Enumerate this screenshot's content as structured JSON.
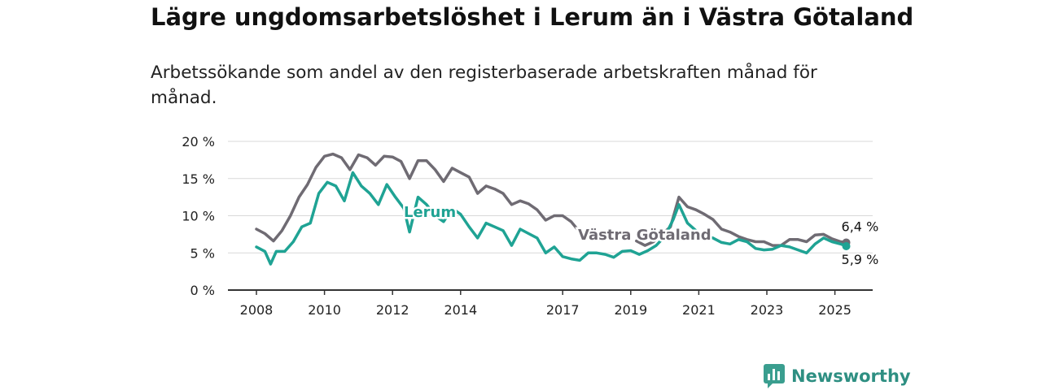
{
  "title": "Lägre ungdomsarbetslöshet i Lerum än i Västra Götaland",
  "subtitle": "Arbetssökande som andel av den registerbaserade arbetskraften månad för månad.",
  "brand": {
    "name": "Newsworthy",
    "icon": "bar-chart-speech-bubble-icon",
    "color": "#3a9e8f"
  },
  "chart_data": {
    "type": "line",
    "xlabel": "",
    "ylabel": "",
    "ylim": [
      0,
      20
    ],
    "xlim": [
      "2008-01",
      "2025-12"
    ],
    "y_ticks": [
      "0 %",
      "5 %",
      "10 %",
      "15 %",
      "20 %"
    ],
    "x_ticks": [
      "2008",
      "2010",
      "2012",
      "2014",
      "2017",
      "2019",
      "2021",
      "2023",
      "2025"
    ],
    "grid": true,
    "series": [
      {
        "name": "Västra Götaland",
        "color": "#6f6b73",
        "end_label": "6,4 %",
        "points": [
          [
            "2008-01",
            8.2
          ],
          [
            "2008-04",
            7.6
          ],
          [
            "2008-07",
            6.6
          ],
          [
            "2008-10",
            8.0
          ],
          [
            "2009-01",
            10.0
          ],
          [
            "2009-04",
            12.5
          ],
          [
            "2009-07",
            14.2
          ],
          [
            "2009-10",
            16.5
          ],
          [
            "2010-01",
            18.0
          ],
          [
            "2010-04",
            18.3
          ],
          [
            "2010-07",
            17.8
          ],
          [
            "2010-10",
            16.2
          ],
          [
            "2011-01",
            18.2
          ],
          [
            "2011-04",
            17.8
          ],
          [
            "2011-07",
            16.8
          ],
          [
            "2011-10",
            18.0
          ],
          [
            "2012-01",
            17.9
          ],
          [
            "2012-04",
            17.3
          ],
          [
            "2012-07",
            15.0
          ],
          [
            "2012-10",
            17.4
          ],
          [
            "2013-01",
            17.4
          ],
          [
            "2013-04",
            16.2
          ],
          [
            "2013-07",
            14.6
          ],
          [
            "2013-10",
            16.4
          ],
          [
            "2014-01",
            15.8
          ],
          [
            "2014-04",
            15.2
          ],
          [
            "2014-07",
            13.0
          ],
          [
            "2014-10",
            14.0
          ],
          [
            "2015-01",
            13.6
          ],
          [
            "2015-04",
            13.0
          ],
          [
            "2015-07",
            11.5
          ],
          [
            "2015-10",
            12.0
          ],
          [
            "2016-01",
            11.6
          ],
          [
            "2016-04",
            10.8
          ],
          [
            "2016-07",
            9.4
          ],
          [
            "2016-10",
            10.0
          ],
          [
            "2017-01",
            10.0
          ],
          [
            "2017-04",
            9.2
          ],
          [
            "2017-07",
            7.8
          ],
          [
            "2019-03",
            6.6
          ],
          [
            "2019-06",
            6.0
          ],
          [
            "2019-09",
            6.5
          ],
          [
            "2020-03",
            8.5
          ],
          [
            "2020-06",
            12.5
          ],
          [
            "2020-09",
            11.2
          ],
          [
            "2020-12",
            10.8
          ],
          [
            "2021-03",
            10.2
          ],
          [
            "2021-06",
            9.5
          ],
          [
            "2021-09",
            8.2
          ],
          [
            "2021-12",
            7.8
          ],
          [
            "2022-03",
            7.2
          ],
          [
            "2022-06",
            6.8
          ],
          [
            "2022-09",
            6.5
          ],
          [
            "2022-12",
            6.5
          ],
          [
            "2023-03",
            6.0
          ],
          [
            "2023-06",
            6.0
          ],
          [
            "2023-09",
            6.8
          ],
          [
            "2023-12",
            6.8
          ],
          [
            "2024-03",
            6.5
          ],
          [
            "2024-06",
            7.4
          ],
          [
            "2024-09",
            7.5
          ],
          [
            "2024-12",
            6.9
          ],
          [
            "2025-03",
            6.5
          ],
          [
            "2025-05",
            6.4
          ]
        ]
      },
      {
        "name": "Lerum",
        "color": "#1fa394",
        "end_label": "5,9 %",
        "points": [
          [
            "2008-01",
            5.8
          ],
          [
            "2008-04",
            5.2
          ],
          [
            "2008-06",
            3.5
          ],
          [
            "2008-08",
            5.2
          ],
          [
            "2008-11",
            5.2
          ],
          [
            "2009-02",
            6.5
          ],
          [
            "2009-05",
            8.5
          ],
          [
            "2009-08",
            9.0
          ],
          [
            "2009-11",
            13.0
          ],
          [
            "2010-02",
            14.5
          ],
          [
            "2010-05",
            14.0
          ],
          [
            "2010-08",
            12.0
          ],
          [
            "2010-11",
            15.8
          ],
          [
            "2011-02",
            14.0
          ],
          [
            "2011-05",
            13.0
          ],
          [
            "2011-08",
            11.5
          ],
          [
            "2011-11",
            14.2
          ],
          [
            "2012-02",
            12.5
          ],
          [
            "2012-05",
            11.0
          ],
          [
            "2012-07",
            7.8
          ],
          [
            "2012-10",
            12.5
          ],
          [
            "2013-01",
            11.5
          ],
          [
            "2013-04",
            10.0
          ],
          [
            "2013-07",
            9.2
          ],
          [
            "2013-10",
            11.0
          ],
          [
            "2014-01",
            10.2
          ],
          [
            "2014-04",
            8.5
          ],
          [
            "2014-07",
            7.0
          ],
          [
            "2014-10",
            9.0
          ],
          [
            "2015-01",
            8.5
          ],
          [
            "2015-04",
            8.0
          ],
          [
            "2015-07",
            6.0
          ],
          [
            "2015-10",
            8.2
          ],
          [
            "2016-01",
            7.6
          ],
          [
            "2016-04",
            7.0
          ],
          [
            "2016-07",
            5.0
          ],
          [
            "2016-10",
            5.8
          ],
          [
            "2017-01",
            4.5
          ],
          [
            "2017-04",
            4.2
          ],
          [
            "2017-07",
            4.0
          ],
          [
            "2017-10",
            5.0
          ],
          [
            "2018-01",
            5.0
          ],
          [
            "2018-04",
            4.8
          ],
          [
            "2018-07",
            4.4
          ],
          [
            "2018-10",
            5.2
          ],
          [
            "2019-01",
            5.3
          ],
          [
            "2019-04",
            4.8
          ],
          [
            "2019-07",
            5.3
          ],
          [
            "2019-10",
            6.0
          ],
          [
            "2020-01",
            7.2
          ],
          [
            "2020-04",
            9.5
          ],
          [
            "2020-06",
            11.5
          ],
          [
            "2020-09",
            9.0
          ],
          [
            "2020-12",
            8.0
          ],
          [
            "2021-03",
            7.2
          ],
          [
            "2021-06",
            7.0
          ],
          [
            "2021-09",
            6.4
          ],
          [
            "2021-12",
            6.2
          ],
          [
            "2022-03",
            6.8
          ],
          [
            "2022-06",
            6.5
          ],
          [
            "2022-09",
            5.6
          ],
          [
            "2022-12",
            5.4
          ],
          [
            "2023-03",
            5.5
          ],
          [
            "2023-06",
            6.0
          ],
          [
            "2023-09",
            5.8
          ],
          [
            "2023-12",
            5.4
          ],
          [
            "2024-03",
            5.0
          ],
          [
            "2024-06",
            6.2
          ],
          [
            "2024-09",
            7.0
          ],
          [
            "2024-12",
            6.5
          ],
          [
            "2025-03",
            6.2
          ],
          [
            "2025-05",
            5.9
          ]
        ]
      }
    ],
    "series_labels": [
      {
        "series": "Lerum",
        "text": "Lerum"
      },
      {
        "series": "Västra Götaland",
        "text": "Västra Götaland"
      }
    ]
  }
}
